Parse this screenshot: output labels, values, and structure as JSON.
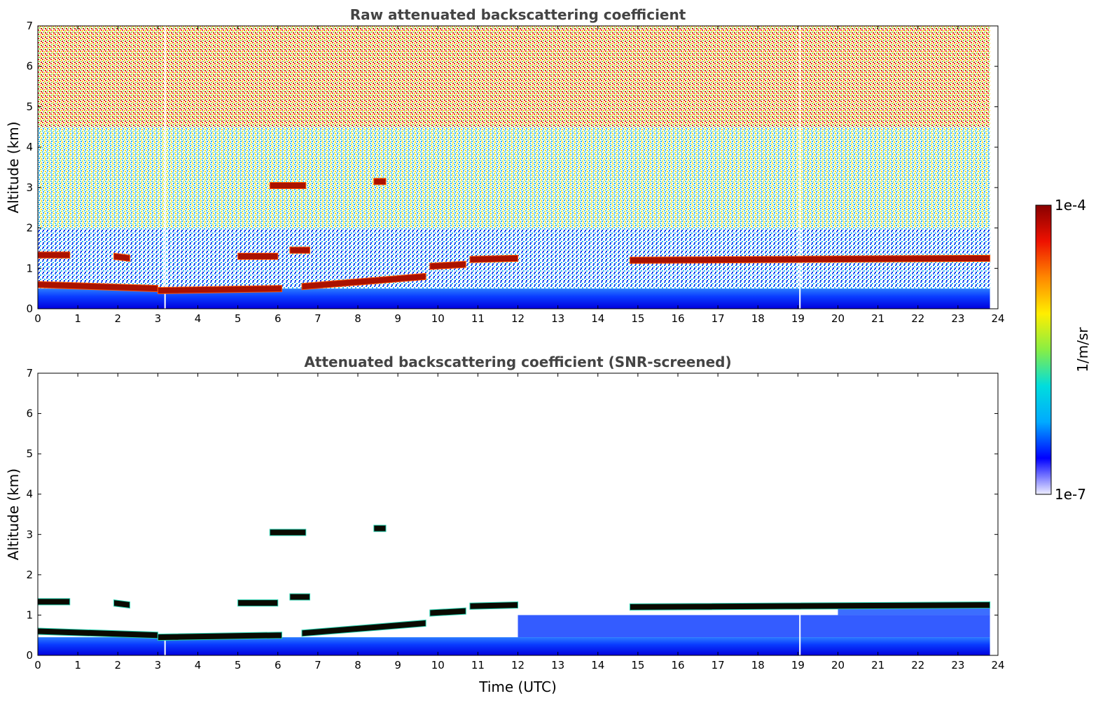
{
  "chart_data": [
    {
      "type": "heatmap",
      "title": "Raw attenuated backscattering coefficient",
      "xlabel": "",
      "ylabel": "Altitude (km)",
      "xlim": [
        0,
        24
      ],
      "ylim": [
        0,
        7
      ],
      "x_ticks": [
        "0",
        "1",
        "2",
        "3",
        "4",
        "5",
        "6",
        "7",
        "8",
        "9",
        "10",
        "11",
        "12",
        "13",
        "14",
        "15",
        "16",
        "17",
        "18",
        "19",
        "20",
        "21",
        "22",
        "23",
        "24"
      ],
      "y_ticks": [
        "0",
        "1",
        "2",
        "3",
        "4",
        "5",
        "6",
        "7"
      ],
      "data_end_time": 23.8,
      "gaps_time": [
        3.18,
        19.05
      ],
      "layer_segments": [
        {
          "t0": 0.0,
          "t1": 3.0,
          "alt0": 0.6,
          "alt1": 0.5
        },
        {
          "t0": 3.0,
          "t1": 6.1,
          "alt0": 0.45,
          "alt1": 0.5
        },
        {
          "t0": 6.6,
          "t1": 9.7,
          "alt0": 0.55,
          "alt1": 0.8
        },
        {
          "t0": 9.8,
          "t1": 10.7,
          "alt0": 1.05,
          "alt1": 1.1
        },
        {
          "t0": 10.8,
          "t1": 12.0,
          "alt0": 1.22,
          "alt1": 1.25
        },
        {
          "t0": 14.8,
          "t1": 23.8,
          "alt0": 1.2,
          "alt1": 1.25
        },
        {
          "t0": 5.0,
          "t1": 6.0,
          "alt0": 1.3,
          "alt1": 1.3
        },
        {
          "t0": 6.3,
          "t1": 6.8,
          "alt0": 1.45,
          "alt1": 1.45
        },
        {
          "t0": 0.0,
          "t1": 0.8,
          "alt0": 1.33,
          "alt1": 1.33
        },
        {
          "t0": 1.9,
          "t1": 2.3,
          "alt0": 1.3,
          "alt1": 1.25
        },
        {
          "t0": 5.8,
          "t1": 6.7,
          "alt0": 3.05,
          "alt1": 3.05
        },
        {
          "t0": 8.4,
          "t1": 8.7,
          "alt0": 3.15,
          "alt1": 3.15
        }
      ]
    },
    {
      "type": "heatmap",
      "title": "Attenuated backscattering coefficient (SNR-screened)",
      "xlabel": "Time (UTC)",
      "ylabel": "Altitude (km)",
      "xlim": [
        0,
        24
      ],
      "ylim": [
        0,
        7
      ],
      "x_ticks": [
        "0",
        "1",
        "2",
        "3",
        "4",
        "5",
        "6",
        "7",
        "8",
        "9",
        "10",
        "11",
        "12",
        "13",
        "14",
        "15",
        "16",
        "17",
        "18",
        "19",
        "20",
        "21",
        "22",
        "23",
        "24"
      ],
      "y_ticks": [
        "0",
        "1",
        "2",
        "3",
        "4",
        "5",
        "6",
        "7"
      ],
      "data_end_time": 23.8,
      "gaps_time": [
        3.18,
        19.05
      ]
    }
  ],
  "colorbar": {
    "label": "1/m/sr",
    "max_label": "1e-4",
    "min_label": "1e-7",
    "colormap": [
      "#eeeeff",
      "#0000ff",
      "#00aaff",
      "#00dddd",
      "#88ee44",
      "#ffee00",
      "#ff8800",
      "#ee1100",
      "#880000"
    ]
  }
}
